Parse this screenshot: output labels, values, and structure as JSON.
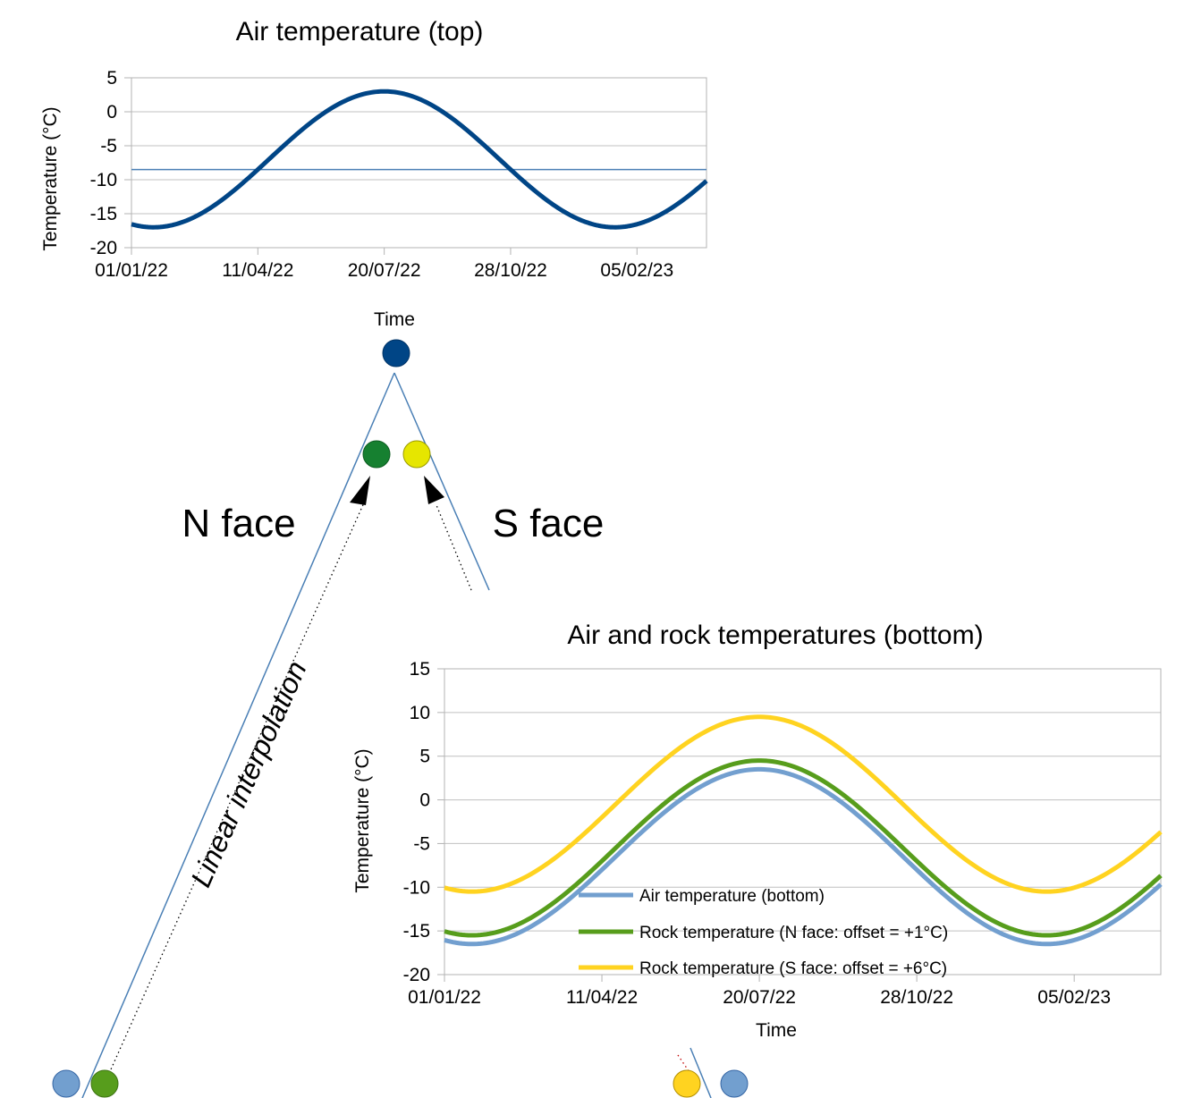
{
  "labels": {
    "n_face": "N face",
    "s_face": "S face",
    "interpolation": "Linear interpolation"
  },
  "colors": {
    "top_line": "#004586",
    "air_bottom": "#729fcf",
    "rock_n": "#579d1c",
    "rock_s": "#ffd320",
    "node_top": "#004586",
    "node_n": "#168030",
    "node_s": "#e6e600",
    "ref_line": "#4a7fb5",
    "grid": "#c0c0c0"
  },
  "chart_data": [
    {
      "type": "line",
      "title": "Air temperature (top)",
      "xlabel": "Time",
      "ylabel": "Temperature (°C)",
      "x_tick_labels": [
        "01/01/22",
        "11/04/22",
        "20/07/22",
        "28/10/22",
        "05/02/23"
      ],
      "x_range": [
        "01/01/22",
        "01/04/23"
      ],
      "ylim": [
        -20,
        5
      ],
      "y_ticks": [
        5,
        0,
        -5,
        -10,
        -15,
        -20
      ],
      "grid": true,
      "series": [
        {
          "type": "sine",
          "mean": -7,
          "amplitude": 10,
          "peak_date": "20/07/22",
          "period_days": 365
        }
      ],
      "reference_line": {
        "y": -8.5
      }
    },
    {
      "type": "line",
      "title": "Air and rock temperatures (bottom)",
      "xlabel": "Time",
      "ylabel": "Temperature (°C)",
      "x_tick_labels": [
        "01/01/22",
        "11/04/22",
        "20/07/22",
        "28/10/22",
        "05/02/23"
      ],
      "x_range": [
        "01/01/22",
        "01/04/23"
      ],
      "ylim": [
        -20,
        15
      ],
      "y_ticks": [
        15,
        10,
        5,
        0,
        -5,
        -10,
        -15,
        -20
      ],
      "grid": true,
      "legend_position": "bottom-center",
      "series": [
        {
          "name": "Air temperature (bottom)",
          "type": "sine",
          "mean": -6.5,
          "amplitude": 10,
          "peak_date": "20/07/22",
          "period_days": 365
        },
        {
          "name": "Rock temperature (N face: offset = +1°C)",
          "type": "sine",
          "mean": -5.5,
          "amplitude": 10,
          "peak_date": "20/07/22",
          "period_days": 365
        },
        {
          "name": "Rock temperature (S face: offset = +6°C)",
          "type": "sine",
          "mean": -0.5,
          "amplitude": 10,
          "peak_date": "20/07/22",
          "period_days": 365
        }
      ]
    }
  ]
}
